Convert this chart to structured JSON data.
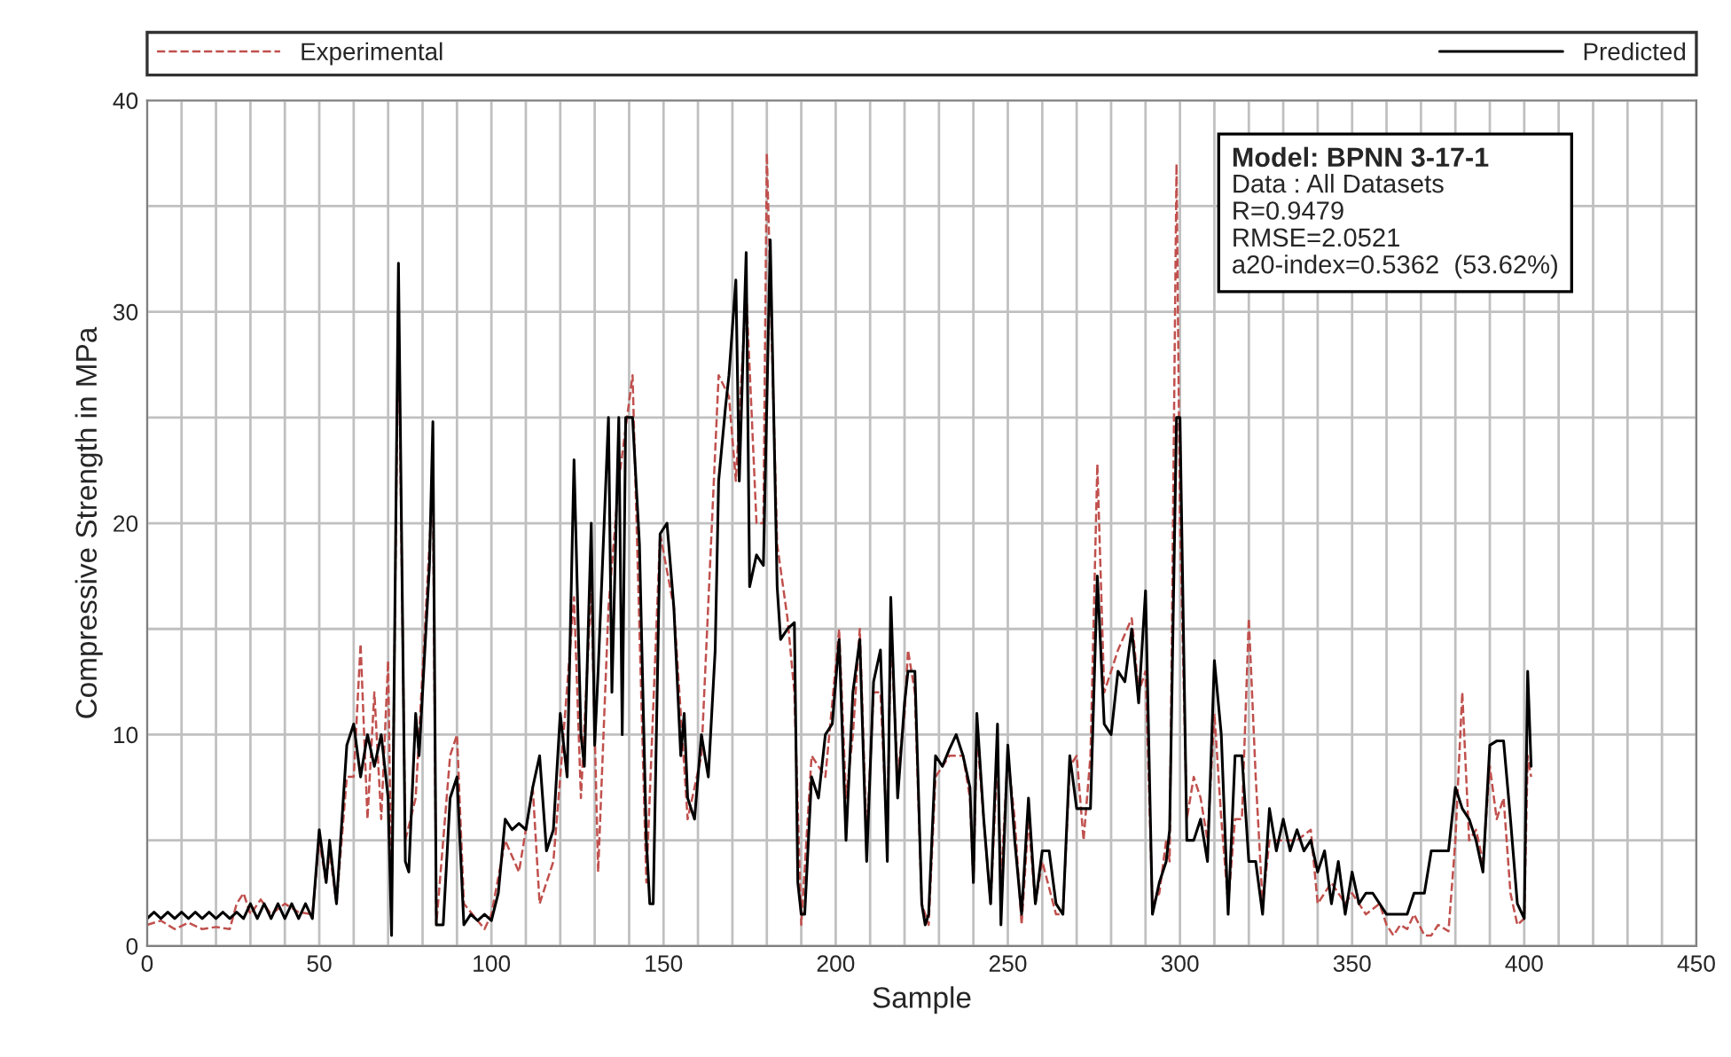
{
  "chart_data": {
    "type": "line",
    "xlabel": "Sample",
    "ylabel": "Compressive Strength in MPa",
    "xlim": [
      0,
      450
    ],
    "ylim": [
      0,
      40
    ],
    "xticks": [
      0,
      {
        "value": 10,
        "label": null
      },
      {
        "value": 20,
        "label": null
      },
      {
        "value": 30,
        "label": null
      },
      {
        "value": 40,
        "label": null
      },
      50,
      {
        "value": 60,
        "label": null
      },
      {
        "value": 70,
        "label": null
      },
      {
        "value": 80,
        "label": null
      },
      {
        "value": 90,
        "label": null
      },
      100,
      {
        "value": 110,
        "label": null
      },
      {
        "value": 120,
        "label": null
      },
      {
        "value": 130,
        "label": null
      },
      {
        "value": 140,
        "label": null
      },
      150,
      {
        "value": 160,
        "label": null
      },
      {
        "value": 170,
        "label": null
      },
      {
        "value": 180,
        "label": null
      },
      {
        "value": 190,
        "label": null
      },
      200,
      {
        "value": 210,
        "label": null
      },
      {
        "value": 220,
        "label": null
      },
      {
        "value": 230,
        "label": null
      },
      {
        "value": 240,
        "label": null
      },
      250,
      {
        "value": 260,
        "label": null
      },
      {
        "value": 270,
        "label": null
      },
      {
        "value": 280,
        "label": null
      },
      {
        "value": 290,
        "label": null
      },
      300,
      {
        "value": 310,
        "label": null
      },
      {
        "value": 320,
        "label": null
      },
      {
        "value": 330,
        "label": null
      },
      {
        "value": 340,
        "label": null
      },
      350,
      {
        "value": 360,
        "label": null
      },
      {
        "value": 370,
        "label": null
      },
      {
        "value": 380,
        "label": null
      },
      {
        "value": 390,
        "label": null
      },
      400,
      {
        "value": 410,
        "label": null
      },
      {
        "value": 420,
        "label": null
      },
      {
        "value": 430,
        "label": null
      },
      {
        "value": 440,
        "label": null
      },
      450
    ],
    "yticks": [
      0,
      {
        "value": 5,
        "label": null
      },
      10,
      {
        "value": 15,
        "label": null
      },
      20,
      {
        "value": 25,
        "label": null
      },
      30,
      {
        "value": 35,
        "label": null
      },
      40
    ],
    "grid": true,
    "legend": "top",
    "marker": "none",
    "annotations": [
      "Model: BPNN 3-17-1",
      "Data : All Datasets",
      "R=0.9479",
      "RMSE=2.0521",
      "a20-index=0.5362  (53.62%)"
    ],
    "series": [
      {
        "name": "Experimental",
        "color": "#c0504d",
        "line_style": "dashed",
        "x": [
          0,
          4,
          8,
          12,
          16,
          20,
          24,
          26,
          28,
          30,
          33,
          36,
          40,
          44,
          48,
          50,
          52,
          53,
          55,
          58,
          60,
          62,
          64,
          66,
          68,
          70,
          71,
          73,
          75,
          78,
          83,
          84,
          88,
          90,
          92,
          98,
          100,
          104,
          108,
          112,
          114,
          118,
          120,
          124,
          126,
          129,
          131,
          134,
          137,
          141,
          145,
          149,
          153,
          157,
          161,
          166,
          169,
          171,
          174,
          177,
          179,
          180,
          183,
          186,
          188,
          190,
          193,
          197,
          201,
          203,
          205,
          207,
          209,
          211,
          213,
          215,
          216,
          218,
          220,
          221,
          223,
          225,
          227,
          229,
          233,
          237,
          239,
          240,
          241,
          243,
          245,
          247,
          248,
          250,
          252,
          254,
          256,
          258,
          260,
          264,
          266,
          268,
          270,
          272,
          274,
          276,
          278,
          280,
          282,
          286,
          288,
          290,
          292,
          294,
          296,
          297,
          299,
          300,
          302,
          304,
          306,
          308,
          310,
          312,
          314,
          316,
          318,
          320,
          322,
          324,
          326,
          330,
          334,
          338,
          340,
          344,
          348,
          350,
          354,
          358,
          360,
          362,
          364,
          366,
          368,
          371,
          373,
          375,
          378,
          380,
          382,
          384,
          386,
          388,
          390,
          392,
          394,
          396,
          398,
          400,
          401,
          402
        ],
        "values": [
          1.0,
          1.2,
          0.8,
          1.1,
          0.8,
          0.9,
          0.8,
          2.0,
          2.5,
          1.5,
          2.2,
          1.5,
          2.0,
          1.6,
          1.5,
          5.0,
          3.0,
          4.5,
          2.0,
          8.0,
          8.0,
          14.3,
          6.0,
          12.0,
          6.0,
          13.5,
          2.0,
          30.0,
          5.0,
          7.0,
          22.0,
          1.0,
          9.0,
          10.0,
          2.0,
          0.8,
          1.5,
          5.0,
          3.5,
          7.5,
          2.0,
          4.0,
          8.0,
          16.5,
          7.0,
          17.0,
          3.5,
          16.0,
          22.0,
          27.0,
          3.0,
          19.5,
          16.0,
          6.0,
          9.0,
          27.0,
          26.0,
          22.0,
          31.0,
          20.0,
          20.0,
          37.5,
          19.0,
          15.5,
          12.0,
          1.0,
          9.0,
          8.0,
          15.0,
          7.0,
          10.0,
          15.0,
          5.0,
          12.0,
          12.0,
          5.0,
          15.0,
          8.0,
          11.0,
          14.0,
          12.0,
          2.0,
          1.0,
          8.0,
          9.0,
          9.0,
          7.0,
          3.0,
          10.0,
          6.0,
          2.0,
          9.0,
          3.0,
          9.0,
          6.0,
          1.0,
          6.0,
          2.0,
          4.0,
          1.5,
          1.5,
          8.5,
          9.0,
          5.0,
          9.0,
          22.8,
          12.0,
          13.0,
          14.0,
          15.5,
          12.0,
          13.0,
          2.0,
          2.5,
          5.0,
          4.0,
          37.0,
          20.0,
          6.0,
          8.0,
          7.0,
          5.0,
          11.0,
          6.0,
          2.0,
          6.0,
          6.0,
          15.5,
          8.0,
          2.0,
          5.0,
          5.0,
          5.0,
          5.5,
          2.0,
          3.0,
          2.0,
          2.5,
          1.5,
          2.0,
          1.0,
          0.5,
          1.0,
          0.8,
          1.5,
          0.5,
          0.5,
          1.0,
          0.7,
          5.0,
          12.0,
          5.0,
          5.5,
          4.0,
          8.5,
          6.0,
          7.0,
          2.5,
          1.0,
          1.3,
          9.0,
          8.0
        ]
      },
      {
        "name": "Predicted",
        "color": "#000000",
        "line_style": "solid",
        "x": [
          0,
          2,
          4,
          6,
          8,
          10,
          12,
          14,
          16,
          18,
          20,
          22,
          24,
          26,
          28,
          30,
          32,
          34,
          36,
          38,
          40,
          42,
          44,
          46,
          48,
          50,
          52,
          53,
          55,
          58,
          60,
          62,
          64,
          66,
          68,
          70,
          71,
          73,
          75,
          76,
          78,
          79,
          82,
          83,
          84,
          86,
          88,
          90,
          92,
          94,
          96,
          98,
          100,
          102,
          104,
          106,
          108,
          110,
          112,
          114,
          116,
          118,
          120,
          122,
          124,
          126,
          127,
          129,
          130,
          131,
          134,
          135,
          137,
          138,
          139,
          141,
          143,
          145,
          146,
          147,
          149,
          151,
          153,
          155,
          156,
          157,
          159,
          161,
          163,
          165,
          166,
          168,
          169,
          171,
          172,
          174,
          175,
          177,
          179,
          181,
          183,
          184,
          186,
          188,
          189,
          190,
          191,
          193,
          195,
          197,
          199,
          201,
          203,
          205,
          207,
          209,
          211,
          213,
          215,
          216,
          218,
          220,
          221,
          223,
          225,
          226,
          227,
          229,
          231,
          233,
          235,
          237,
          239,
          240,
          241,
          243,
          245,
          247,
          248,
          250,
          252,
          254,
          256,
          258,
          260,
          262,
          264,
          266,
          268,
          270,
          272,
          274,
          276,
          278,
          280,
          282,
          284,
          286,
          288,
          290,
          292,
          294,
          296,
          297,
          299,
          300,
          302,
          304,
          306,
          308,
          310,
          312,
          314,
          316,
          318,
          320,
          322,
          324,
          326,
          328,
          330,
          332,
          334,
          336,
          338,
          340,
          342,
          344,
          346,
          348,
          350,
          352,
          354,
          356,
          358,
          360,
          364,
          366,
          368,
          371,
          373,
          375,
          378,
          380,
          382,
          384,
          386,
          388,
          390,
          392,
          394,
          396,
          398,
          400,
          401,
          402
        ],
        "values": [
          1.3,
          1.6,
          1.3,
          1.6,
          1.3,
          1.6,
          1.3,
          1.6,
          1.3,
          1.6,
          1.3,
          1.6,
          1.3,
          1.6,
          1.3,
          2.0,
          1.3,
          2.0,
          1.3,
          2.0,
          1.3,
          2.0,
          1.3,
          2.0,
          1.3,
          5.5,
          3.0,
          5.0,
          2.0,
          9.5,
          10.5,
          8.0,
          10.0,
          8.5,
          10.0,
          7.0,
          0.5,
          32.3,
          4.0,
          3.5,
          11.0,
          9.0,
          18.0,
          24.8,
          1.0,
          1.0,
          7.0,
          8.0,
          1.0,
          1.5,
          1.2,
          1.5,
          1.2,
          2.5,
          6.0,
          5.5,
          5.8,
          5.5,
          7.5,
          9.0,
          4.5,
          5.5,
          11.0,
          8.0,
          23.0,
          10.0,
          8.5,
          20.0,
          9.5,
          13.0,
          25.0,
          12.0,
          25.0,
          10.0,
          25.0,
          25.0,
          19.0,
          5.0,
          2.0,
          2.0,
          19.5,
          20.0,
          16.0,
          9.0,
          11.0,
          7.0,
          6.0,
          10.0,
          8.0,
          14.0,
          22.0,
          25.5,
          27.0,
          31.5,
          22.0,
          32.8,
          17.0,
          18.5,
          18.0,
          33.4,
          17.0,
          14.5,
          15.0,
          15.3,
          3.0,
          1.5,
          1.5,
          8.0,
          7.0,
          10.0,
          10.5,
          14.5,
          5.0,
          12.0,
          14.5,
          4.0,
          12.5,
          14.0,
          4.0,
          16.5,
          7.0,
          11.5,
          13.0,
          13.0,
          2.0,
          1.0,
          1.5,
          9.0,
          8.5,
          9.3,
          10.0,
          9.0,
          7.5,
          3.0,
          11.0,
          6.0,
          2.0,
          10.5,
          1.0,
          9.5,
          5.0,
          1.5,
          7.0,
          2.0,
          4.5,
          4.5,
          2.0,
          1.5,
          9.0,
          6.5,
          6.5,
          6.5,
          17.5,
          10.5,
          10.0,
          13.0,
          12.5,
          15.0,
          11.5,
          16.8,
          1.5,
          3.0,
          4.0,
          5.5,
          25.0,
          25.0,
          5.0,
          5.0,
          6.0,
          4.0,
          13.5,
          10.0,
          1.5,
          9.0,
          9.0,
          4.0,
          4.0,
          1.5,
          6.5,
          4.5,
          6.0,
          4.5,
          5.5,
          4.5,
          5.0,
          3.5,
          4.5,
          2.0,
          4.0,
          1.5,
          3.5,
          2.0,
          2.5,
          2.5,
          2.0,
          1.5,
          1.5,
          1.5,
          2.5,
          2.5,
          4.5,
          4.5,
          4.5,
          7.5,
          6.5,
          6.0,
          5.0,
          3.5,
          9.5,
          9.7,
          9.7,
          6.0,
          2.0,
          1.3,
          13.0,
          8.5
        ]
      }
    ]
  }
}
